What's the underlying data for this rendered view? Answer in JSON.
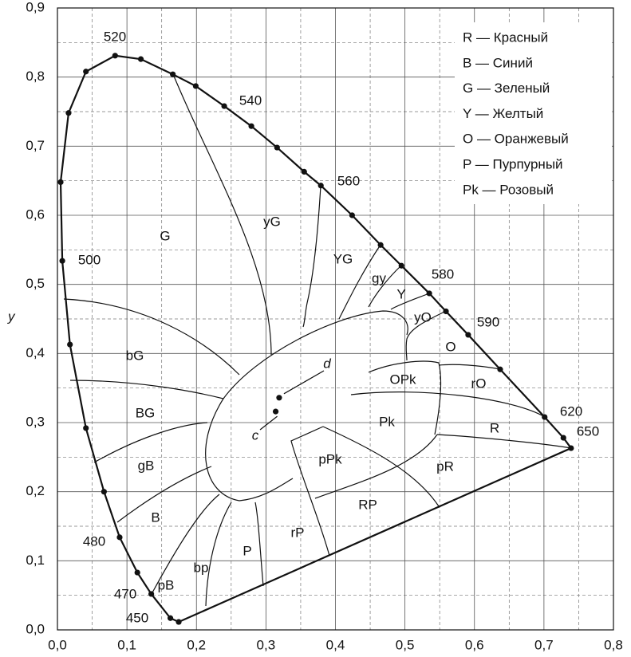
{
  "chart_data": {
    "type": "chromaticity",
    "y_label": "y",
    "xlim": [
      0,
      0.8
    ],
    "ylim": [
      0,
      0.9
    ],
    "xticks": [
      {
        "value": 0,
        "label": "0,0"
      },
      {
        "value": 0.1,
        "label": "0,1"
      },
      {
        "value": 0.2,
        "label": "0,2"
      },
      {
        "value": 0.3,
        "label": "0,3"
      },
      {
        "value": 0.4,
        "label": "0,4"
      },
      {
        "value": 0.5,
        "label": "0,5"
      },
      {
        "value": 0.6,
        "label": "0,6"
      },
      {
        "value": 0.7,
        "label": "0,7"
      },
      {
        "value": 0.8,
        "label": "0,8"
      }
    ],
    "yticks": [
      {
        "value": 0,
        "label": "0,0"
      },
      {
        "value": 0.1,
        "label": "0,1"
      },
      {
        "value": 0.2,
        "label": "0,2"
      },
      {
        "value": 0.3,
        "label": "0,3"
      },
      {
        "value": 0.4,
        "label": "0,4"
      },
      {
        "value": 0.5,
        "label": "0,5"
      },
      {
        "value": 0.6,
        "label": "0,6"
      },
      {
        "value": 0.7,
        "label": "0,7"
      },
      {
        "value": 0.8,
        "label": "0,8"
      },
      {
        "value": 0.9,
        "label": "0,9"
      }
    ],
    "xminorticks": [
      0.05,
      0.15,
      0.25,
      0.35,
      0.45,
      0.55,
      0.65,
      0.75
    ],
    "yminorticks": [
      0.05,
      0.15,
      0.25,
      0.35,
      0.45,
      0.55,
      0.65,
      0.75,
      0.85
    ],
    "grid": true,
    "locus": {
      "color": "#111111",
      "x": [
        0.1745,
        0.1625,
        0.135,
        0.115,
        0.0895,
        0.067,
        0.041,
        0.018,
        0.007,
        0.0046,
        0.016,
        0.041,
        0.083,
        0.12,
        0.166,
        0.199,
        0.24,
        0.279,
        0.316,
        0.355,
        0.379,
        0.424,
        0.465,
        0.495,
        0.535,
        0.559,
        0.591,
        0.637,
        0.701,
        0.728,
        0.739
      ],
      "y": [
        0.0115,
        0.017,
        0.052,
        0.083,
        0.134,
        0.2,
        0.292,
        0.413,
        0.534,
        0.648,
        0.748,
        0.808,
        0.831,
        0.826,
        0.804,
        0.787,
        0.758,
        0.729,
        0.698,
        0.663,
        0.643,
        0.6,
        0.557,
        0.527,
        0.487,
        0.461,
        0.427,
        0.377,
        0.308,
        0.278,
        0.263
      ]
    },
    "wavelength_labels": [
      520,
      540,
      560,
      500,
      580,
      590,
      620,
      650,
      480,
      470,
      450
    ],
    "points": {
      "x": [
        0.319,
        0.314
      ],
      "y": [
        0.336,
        0.316
      ],
      "labels": [
        "d",
        "c"
      ]
    },
    "regions": [
      "G",
      "yG",
      "YG",
      "gy",
      "Y",
      "yO",
      "O",
      "OPk",
      "rO",
      "bG",
      "BG",
      "Pk",
      "R",
      "gB",
      "pPk",
      "pR",
      "RP",
      "B",
      "rP",
      "P",
      "bp",
      "pB"
    ],
    "legend": [
      "R — Красный",
      "B — Синий",
      "G — Зеленый",
      "Y — Желтый",
      "O — Оранжевый",
      "P — Пурпурный",
      "Pk — Розовый"
    ]
  }
}
